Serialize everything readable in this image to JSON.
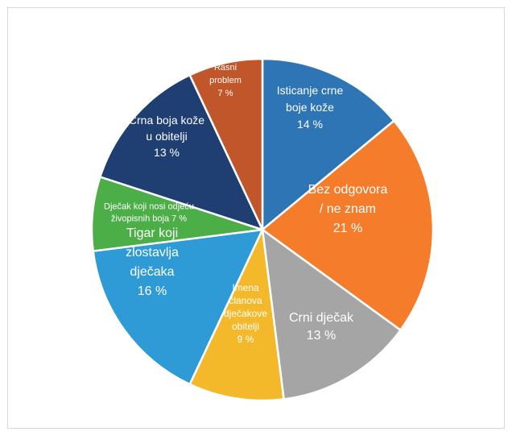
{
  "chart_data": {
    "type": "pie",
    "title": "",
    "slices": [
      {
        "label_lines": [
          "Isticanje crne",
          "boje kože"
        ],
        "value_label": "14 %",
        "value": 14,
        "color": "#2e75b6"
      },
      {
        "label_lines": [
          "Bez odgovora",
          "/ ne znam"
        ],
        "value_label": "21 %",
        "value": 21,
        "color": "#f47c2a"
      },
      {
        "label_lines": [
          "Crni dječak"
        ],
        "value_label": "13 %",
        "value": 13,
        "color": "#a5a5a5"
      },
      {
        "label_lines": [
          "Imena",
          "članova",
          "dječakove",
          "obitelji"
        ],
        "value_label": "9 %",
        "value": 9,
        "color": "#f4b92a"
      },
      {
        "label_lines": [
          "Tigar koji",
          "zlostavlja",
          "dječaka"
        ],
        "value_label": "16 %",
        "value": 16,
        "color": "#2e9bd6"
      },
      {
        "label_lines": [
          "Dječak koji nosi odjeću",
          "živopisnih boja"
        ],
        "value_label": "7 %",
        "value": 7,
        "color": "#4cae47"
      },
      {
        "label_lines": [
          "Crna boja kože",
          "u obitelji"
        ],
        "value_label": "13 %",
        "value": 13,
        "color": "#1f3f73"
      },
      {
        "label_lines": [
          "Rasni",
          "problem"
        ],
        "value_label": "7 %",
        "value": 7,
        "color": "#c0562a"
      }
    ]
  }
}
